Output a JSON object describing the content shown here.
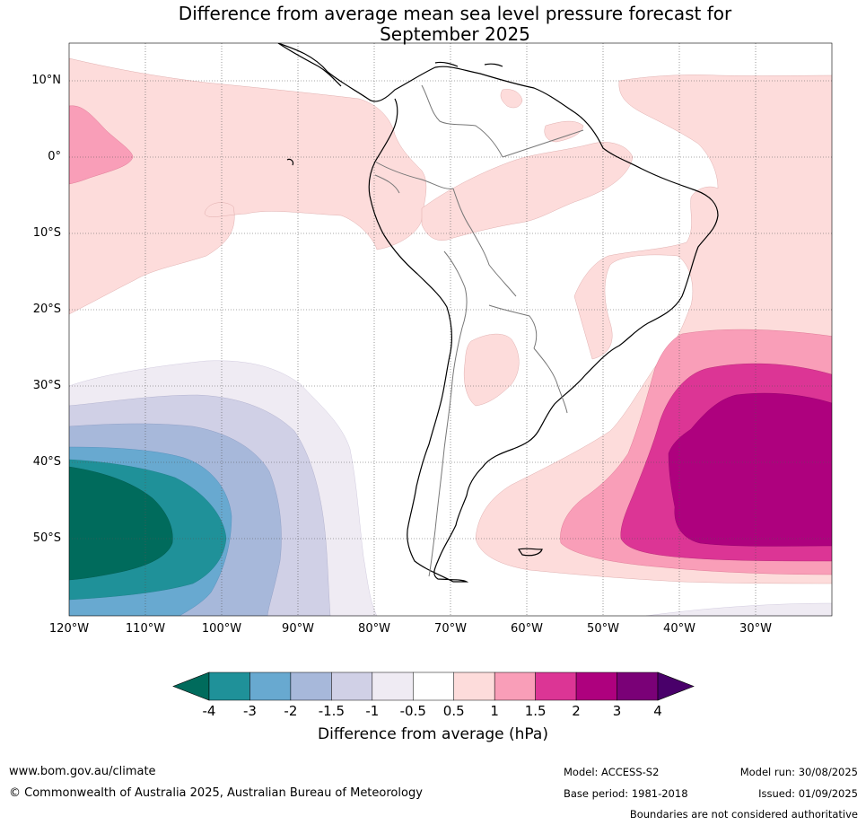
{
  "title_line1": "Difference from average mean sea level pressure forecast for",
  "title_line2": "September 2025",
  "lat_labels": [
    "10°N",
    "0°",
    "10°S",
    "20°S",
    "30°S",
    "40°S",
    "50°S"
  ],
  "lon_labels": [
    "120°W",
    "110°W",
    "100°W",
    "90°W",
    "80°W",
    "70°W",
    "60°W",
    "50°W",
    "40°W",
    "30°W"
  ],
  "colorbar": {
    "ticks": [
      "-4",
      "-3",
      "-2",
      "-1.5",
      "-1",
      "-0.5",
      "0.5",
      "1",
      "1.5",
      "2",
      "3",
      "4"
    ],
    "colors": [
      "#006b5c",
      "#1f9199",
      "#68a9d0",
      "#a7b8da",
      "#d0d0e6",
      "#efebf3",
      "#ffffff",
      "#fddcdb",
      "#f99eb8",
      "#dc3595",
      "#ae017e",
      "#7a0177",
      "#49006a"
    ],
    "title": "Difference from average (hPa)"
  },
  "footer": {
    "website": "www.bom.gov.au/climate",
    "copyright": "© Commonwealth of Australia 2025, Australian Bureau of Meteorology",
    "model": "Model: ACCESS-S2",
    "base_period": "Base period: 1981-2018",
    "model_run": "Model run: 30/08/2025",
    "issued": "Issued: 01/09/2025",
    "boundaries": "Boundaries are not considered authoritative"
  }
}
